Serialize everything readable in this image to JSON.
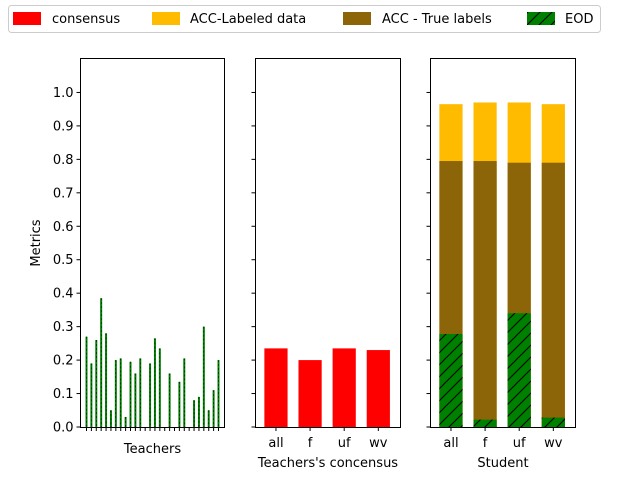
{
  "legend": {
    "placement": "top",
    "items": [
      {
        "label": "consensus",
        "color": "#ff0000",
        "hatch": false
      },
      {
        "label": "ACC-Labeled data",
        "color": "#ffbb00",
        "hatch": false
      },
      {
        "label": "ACC - True labels",
        "color": "#8b6508",
        "hatch": false
      },
      {
        "label": "EOD",
        "color": "#008000",
        "hatch": true
      }
    ]
  },
  "chart_data": [
    {
      "type": "bar",
      "title": "",
      "xlabel": "Teachers",
      "ylabel": "Metrics",
      "ylim": [
        0,
        1.1
      ],
      "yticks": [
        "0.0",
        "0.1",
        "0.2",
        "0.3",
        "0.4",
        "0.5",
        "0.6",
        "0.7",
        "0.8",
        "0.9",
        "1.0"
      ],
      "grid": false,
      "series": [
        {
          "name": "EOD",
          "values": [
            0.27,
            0.19,
            0.26,
            0.385,
            0.28,
            0.05,
            0.2,
            0.205,
            0.03,
            0.195,
            0.16,
            0.205,
            0.0,
            0.19,
            0.265,
            0.235,
            0.0,
            0.16,
            0.0,
            0.135,
            0.205,
            0.0,
            0.08,
            0.09,
            0.3,
            0.05,
            0.11,
            0.2
          ]
        }
      ]
    },
    {
      "type": "bar",
      "title": "",
      "xlabel": "Teachers's concensus",
      "ylabel": "",
      "ylim": [
        0,
        1.1
      ],
      "categories": [
        "all",
        "f",
        "uf",
        "wv"
      ],
      "series": [
        {
          "name": "consensus",
          "values": [
            0.235,
            0.2,
            0.235,
            0.23
          ]
        }
      ]
    },
    {
      "type": "bar",
      "title": "",
      "xlabel": "Student",
      "ylabel": "",
      "ylim": [
        0,
        1.1
      ],
      "categories": [
        "all",
        "f",
        "uf",
        "wv"
      ],
      "series": [
        {
          "name": "ACC-Labeled data",
          "values": [
            0.965,
            0.97,
            0.97,
            0.965
          ]
        },
        {
          "name": "ACC - True labels",
          "values": [
            0.795,
            0.795,
            0.79,
            0.79
          ]
        },
        {
          "name": "EOD",
          "values": [
            0.278,
            0.022,
            0.34,
            0.028
          ]
        }
      ]
    }
  ]
}
